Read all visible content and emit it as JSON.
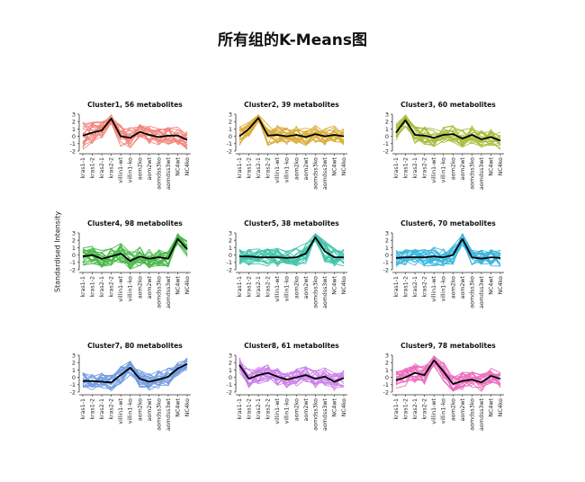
{
  "title": "所有组的K-Means图",
  "ylabel": "Standardised Intensity",
  "chart_data": [
    {
      "type": "line",
      "title": "Cluster1, 56 metabolites",
      "color": "#F07368",
      "categories": [
        "kras1-1",
        "kras1-2",
        "kras2-1",
        "kras2-2",
        "villin1-wt",
        "villin1-ko",
        "aom2ko",
        "aom2wt",
        "aomdss3ko",
        "aomdss3wt",
        "NC4wt",
        "NC4ko"
      ],
      "ylim": [
        -2,
        3
      ],
      "yticks": [
        -2,
        -1,
        0,
        1,
        2,
        3
      ],
      "mean": [
        0.1,
        0.5,
        0.8,
        2.4,
        0.0,
        -0.2,
        0.6,
        0.2,
        -0.1,
        0.1,
        0.1,
        -0.5
      ],
      "band": [
        2.0,
        1.5,
        1.2,
        0.8,
        1.5,
        1.4,
        1.0,
        1.3,
        1.2,
        1.2,
        1.2,
        1.3
      ]
    },
    {
      "type": "line",
      "title": "Cluster2, 39 metabolites",
      "color": "#D4A018",
      "categories": [
        "kras1-1",
        "kras1-2",
        "kras2-1",
        "kras2-2",
        "villin1-wt",
        "villin1-ko",
        "aom2ko",
        "aom2wt",
        "aomdss3ko",
        "aomdss3wt",
        "NC4wt",
        "NC4ko"
      ],
      "ylim": [
        -2,
        3
      ],
      "yticks": [
        -2,
        -1,
        0,
        1,
        2,
        3
      ],
      "mean": [
        0.0,
        1.0,
        2.5,
        0.1,
        0.2,
        0.0,
        0.2,
        -0.1,
        0.3,
        0.0,
        0.2,
        0.0
      ],
      "band": [
        1.4,
        1.2,
        0.6,
        1.5,
        1.3,
        1.2,
        1.2,
        1.2,
        1.3,
        1.2,
        1.2,
        1.2
      ]
    },
    {
      "type": "line",
      "title": "Cluster3, 60 metabolites",
      "color": "#9CB21E",
      "categories": [
        "kras1-1",
        "kras1-2",
        "kras2-1",
        "kras2-2",
        "villin1-wt",
        "villin1-ko",
        "aom2ko",
        "aom2wt",
        "aomdss3ko",
        "aomdss3wt",
        "NC4wt",
        "NC4ko"
      ],
      "ylim": [
        -2,
        3
      ],
      "yticks": [
        -2,
        -1,
        0,
        1,
        2,
        3
      ],
      "mean": [
        0.5,
        2.2,
        0.2,
        0.1,
        -0.2,
        0.2,
        0.3,
        -0.3,
        0.2,
        -0.4,
        -0.1,
        -0.6
      ],
      "band": [
        1.3,
        0.9,
        1.2,
        1.2,
        1.3,
        1.2,
        1.2,
        1.2,
        1.3,
        1.2,
        1.2,
        1.2
      ]
    },
    {
      "type": "line",
      "title": "Cluster4, 98 metabolites",
      "color": "#2BAE2B",
      "categories": [
        "kras1-1",
        "kras1-2",
        "kras2-1",
        "kras2-2",
        "villin1-wt",
        "villin1-ko",
        "aom2ko",
        "aom2wt",
        "aomdss3ko",
        "aomdss3wt",
        "NC4wt",
        "NC4ko"
      ],
      "ylim": [
        -2,
        3
      ],
      "yticks": [
        -2,
        -1,
        0,
        1,
        2,
        3
      ],
      "mean": [
        -0.2,
        0.0,
        -0.5,
        -0.2,
        0.2,
        -0.8,
        -0.2,
        -0.5,
        -0.3,
        -0.5,
        2.2,
        0.8
      ],
      "band": [
        1.2,
        1.3,
        1.2,
        1.2,
        1.4,
        1.3,
        1.3,
        1.3,
        1.2,
        1.2,
        0.9,
        1.1
      ]
    },
    {
      "type": "line",
      "title": "Cluster5, 38 metabolites",
      "color": "#20B89A",
      "categories": [
        "kras1-1",
        "kras1-2",
        "kras2-1",
        "kras2-2",
        "villin1-wt",
        "villin1-ko",
        "aom2ko",
        "aom2wt",
        "aomdss3ko",
        "aomdss3wt",
        "NC4wt",
        "NC4ko"
      ],
      "ylim": [
        -2,
        3
      ],
      "yticks": [
        -2,
        -1,
        0,
        1,
        2,
        3
      ],
      "mean": [
        -0.2,
        -0.2,
        -0.3,
        -0.3,
        -0.3,
        -0.4,
        -0.3,
        0.2,
        2.4,
        0.5,
        -0.3,
        -0.3
      ],
      "band": [
        1.3,
        1.2,
        1.2,
        1.2,
        1.3,
        1.2,
        1.3,
        1.4,
        0.7,
        1.5,
        1.3,
        1.2
      ]
    },
    {
      "type": "line",
      "title": "Cluster6, 70 metabolites",
      "color": "#1AAAD8",
      "categories": [
        "kras1-1",
        "kras1-2",
        "kras2-1",
        "kras2-2",
        "villin1-wt",
        "villin1-ko",
        "aom2ko",
        "aom2wt",
        "aomdss3ko",
        "aomdss3wt",
        "NC4wt",
        "NC4ko"
      ],
      "ylim": [
        -2,
        3
      ],
      "yticks": [
        -2,
        -1,
        0,
        1,
        2,
        3
      ],
      "mean": [
        -0.4,
        -0.3,
        -0.3,
        -0.3,
        -0.2,
        -0.3,
        0.0,
        2.2,
        -0.3,
        -0.5,
        -0.3,
        -0.4
      ],
      "band": [
        1.2,
        1.2,
        1.2,
        1.2,
        1.3,
        1.2,
        1.3,
        0.8,
        1.2,
        1.2,
        1.2,
        1.2
      ]
    },
    {
      "type": "line",
      "title": "Cluster7, 80 metabolites",
      "color": "#5B8EDC",
      "categories": [
        "kras1-1",
        "kras1-2",
        "kras2-1",
        "kras2-2",
        "villin1-wt",
        "villin1-ko",
        "aom2ko",
        "aom2wt",
        "aomdss3ko",
        "aomdss3wt",
        "NC4wt",
        "NC4ko"
      ],
      "ylim": [
        -2,
        3
      ],
      "yticks": [
        -2,
        -1,
        0,
        1,
        2,
        3
      ],
      "mean": [
        -0.5,
        -0.5,
        -0.6,
        -0.7,
        0.3,
        1.3,
        -0.2,
        -0.6,
        -0.3,
        0.1,
        1.2,
        1.8
      ],
      "band": [
        1.2,
        1.2,
        1.2,
        1.2,
        1.3,
        1.0,
        1.2,
        1.2,
        1.2,
        1.3,
        1.0,
        0.9
      ]
    },
    {
      "type": "line",
      "title": "Cluster8, 61 metabolites",
      "color": "#C46DE6",
      "categories": [
        "kras1-1",
        "kras1-2",
        "kras2-1",
        "kras2-2",
        "villin1-wt",
        "villin1-ko",
        "aom2ko",
        "aom2wt",
        "aomdss3ko",
        "aomdss3wt",
        "NC4wt",
        "NC4ko"
      ],
      "ylim": [
        -2,
        3
      ],
      "yticks": [
        -2,
        -1,
        0,
        1,
        2,
        3
      ],
      "mean": [
        1.7,
        -0.2,
        0.3,
        0.6,
        0.1,
        -0.3,
        0.0,
        0.3,
        -0.2,
        0.1,
        -0.6,
        -0.1
      ],
      "band": [
        1.0,
        1.3,
        1.2,
        1.2,
        1.2,
        1.2,
        1.2,
        1.2,
        1.2,
        1.2,
        1.2,
        1.2
      ]
    },
    {
      "type": "line",
      "title": "Cluster9, 78 metabolites",
      "color": "#E856B4",
      "categories": [
        "kras1-1",
        "kras1-2",
        "kras2-1",
        "kras2-2",
        "villin1-wt",
        "villin1-ko",
        "aom2ko",
        "aom2wt",
        "aomdss3ko",
        "aomdss3wt",
        "NC4wt",
        "NC4ko"
      ],
      "ylim": [
        -2,
        3
      ],
      "yticks": [
        -2,
        -1,
        0,
        1,
        2,
        3
      ],
      "mean": [
        -0.4,
        0.0,
        0.6,
        0.3,
        2.3,
        0.8,
        -0.9,
        -0.5,
        -0.3,
        -0.7,
        0.2,
        -0.2
      ],
      "band": [
        1.2,
        1.2,
        1.3,
        1.3,
        0.8,
        1.3,
        1.2,
        1.2,
        1.2,
        1.2,
        1.2,
        1.2
      ]
    }
  ]
}
